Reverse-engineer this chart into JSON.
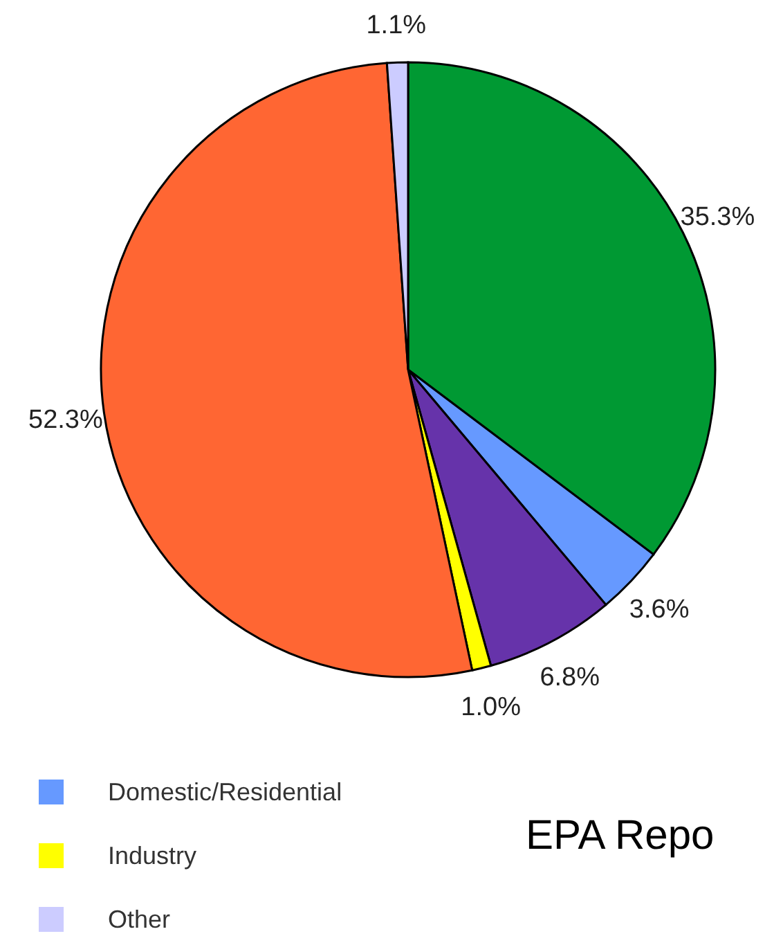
{
  "chart_data": {
    "type": "pie",
    "categories": [
      null,
      "Domestic/Residential",
      null,
      "Industry",
      null,
      "Other"
    ],
    "values": [
      35.3,
      3.6,
      6.8,
      1.0,
      52.3,
      1.1
    ],
    "value_labels": [
      "35.3%",
      "3.6%",
      "6.8%",
      "1.0%",
      "52.3%",
      "1.1%"
    ],
    "colors": [
      "#009933",
      "#6699ff",
      "#6633aa",
      "#ffff00",
      "#ff6633",
      "#ccccff"
    ],
    "legend": "bottom left",
    "annotations": [
      "EPA Repo"
    ]
  }
}
